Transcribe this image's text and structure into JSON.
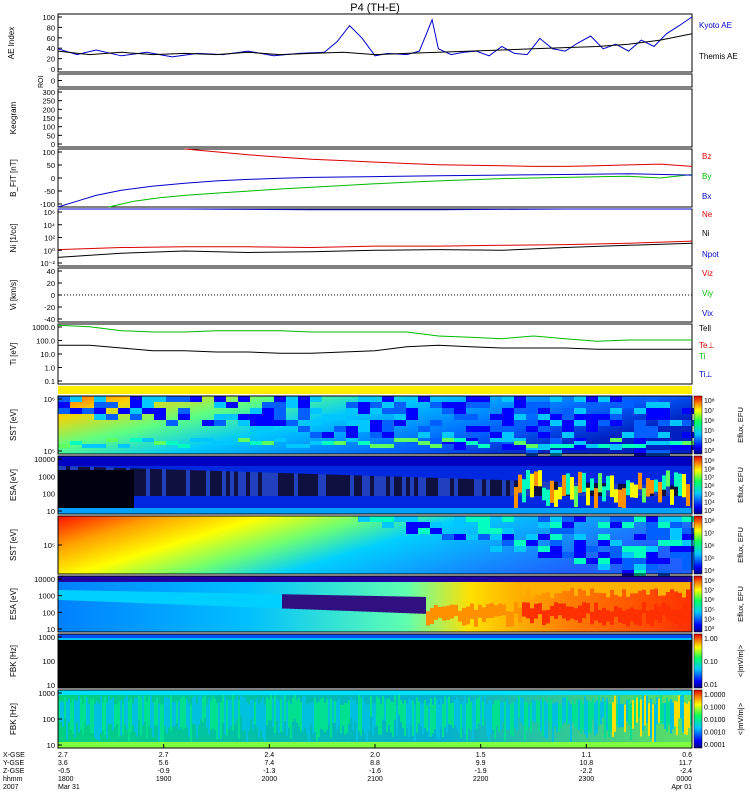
{
  "title": "P4 (TH-E)",
  "colors": {
    "kyoto": "#0000cc",
    "themis": "#000000",
    "bz": "#dd0000",
    "by": "#00bb00",
    "bx": "#0000cc",
    "ne": "#dd0000",
    "ni": "#000000",
    "npot": "#0000cc",
    "tell": "#000000",
    "tperp": "#dd0000",
    "ti": "#00bb00",
    "tiperp": "#0000cc"
  },
  "chart_data": [
    {
      "id": "ae",
      "type": "line",
      "ylabel": "AE Index",
      "yticks": [
        "100",
        "80",
        "60",
        "40",
        "20",
        "0"
      ],
      "ylim": [
        0,
        100
      ],
      "series": [
        {
          "name": "Kyoto AE",
          "color_key": "kyoto",
          "x": [
            0,
            0.03,
            0.06,
            0.1,
            0.14,
            0.18,
            0.22,
            0.26,
            0.3,
            0.34,
            0.38,
            0.42,
            0.44,
            0.46,
            0.48,
            0.5,
            0.52,
            0.55,
            0.57,
            0.59,
            0.6,
            0.62,
            0.64,
            0.66,
            0.68,
            0.7,
            0.72,
            0.74,
            0.76,
            0.78,
            0.8,
            0.82,
            0.84,
            0.86,
            0.88,
            0.9,
            0.92,
            0.94,
            0.96,
            0.98,
            1.0
          ],
          "y": [
            40,
            30,
            38,
            28,
            34,
            26,
            32,
            30,
            36,
            28,
            32,
            34,
            52,
            80,
            58,
            28,
            32,
            30,
            36,
            90,
            40,
            30,
            34,
            36,
            28,
            44,
            32,
            30,
            58,
            40,
            36,
            50,
            62,
            40,
            48,
            36,
            55,
            44,
            66,
            80,
            95
          ]
        },
        {
          "name": "Themis AE",
          "color_key": "themis",
          "x": [
            0,
            0.05,
            0.1,
            0.15,
            0.2,
            0.25,
            0.3,
            0.35,
            0.4,
            0.45,
            0.5,
            0.55,
            0.6,
            0.65,
            0.7,
            0.75,
            0.8,
            0.85,
            0.9,
            0.95,
            1.0
          ],
          "y": [
            36,
            30,
            34,
            30,
            32,
            30,
            34,
            30,
            32,
            34,
            30,
            32,
            34,
            36,
            38,
            40,
            42,
            44,
            48,
            55,
            66
          ]
        }
      ]
    },
    {
      "id": "roi",
      "type": "line",
      "ylabel": "ROI",
      "yticks": [
        "0"
      ],
      "series": []
    },
    {
      "id": "keogram",
      "type": "heatmap",
      "ylabel": "Keogram",
      "yticks": [
        "300",
        "250",
        "200",
        "150",
        "100",
        "50",
        "0"
      ],
      "ylim": [
        0,
        300
      ],
      "values": []
    },
    {
      "id": "bfield",
      "type": "line",
      "ylabel": "B_FIT [nT]",
      "yticks": [
        "100",
        "50",
        "0",
        "-50",
        "-100"
      ],
      "ylim": [
        -100,
        100
      ],
      "series": [
        {
          "name": "Bz",
          "color_key": "bz",
          "x": [
            0.2,
            0.25,
            0.3,
            0.35,
            0.4,
            0.45,
            0.5,
            0.55,
            0.6,
            0.65,
            0.7,
            0.75,
            0.8,
            0.85,
            0.9,
            0.95,
            1.0
          ],
          "y": [
            100,
            90,
            80,
            72,
            65,
            60,
            55,
            50,
            46,
            44,
            42,
            40,
            40,
            42,
            45,
            48,
            40
          ]
        },
        {
          "name": "By",
          "color_key": "by",
          "x": [
            0.08,
            0.12,
            0.16,
            0.2,
            0.25,
            0.3,
            0.35,
            0.4,
            0.45,
            0.5,
            0.55,
            0.6,
            0.65,
            0.7,
            0.75,
            0.8,
            0.85,
            0.9,
            0.95,
            1.0
          ],
          "y": [
            -100,
            -80,
            -68,
            -60,
            -52,
            -45,
            -38,
            -32,
            -26,
            -20,
            -15,
            -10,
            -6,
            -2,
            0,
            2,
            4,
            6,
            0,
            12
          ]
        },
        {
          "name": "Bx",
          "color_key": "bx",
          "x": [
            0,
            0.03,
            0.06,
            0.1,
            0.15,
            0.2,
            0.25,
            0.3,
            0.35,
            0.4,
            0.5,
            0.6,
            0.7,
            0.8,
            0.9,
            1.0
          ],
          "y": [
            -100,
            -80,
            -60,
            -42,
            -28,
            -18,
            -10,
            -5,
            -1,
            2,
            5,
            8,
            10,
            12,
            15,
            10
          ]
        }
      ]
    },
    {
      "id": "density",
      "type": "line",
      "ylabel": "Ni [1/cc]",
      "yticks": [
        "10⁶",
        "10⁴",
        "10²",
        "10⁰",
        "10⁻²"
      ],
      "ylim": [
        -2,
        6
      ],
      "series": [
        {
          "name": "Ne",
          "color_key": "ne",
          "x": [
            0,
            0.1,
            0.2,
            0.3,
            0.4,
            0.5,
            0.6,
            0.7,
            0.8,
            0.9,
            1.0
          ],
          "y": [
            0.3,
            0.6,
            0.7,
            0.7,
            0.6,
            0.8,
            0.8,
            0.9,
            1.0,
            1.2,
            1.5
          ]
        },
        {
          "name": "Ni",
          "color_key": "ni",
          "x": [
            0,
            0.1,
            0.2,
            0.3,
            0.4,
            0.5,
            0.6,
            0.7,
            0.8,
            0.9,
            1.0
          ],
          "y": [
            -0.8,
            -0.2,
            0.1,
            -0.1,
            0.0,
            0.2,
            0.3,
            0.2,
            0.6,
            0.9,
            1.2
          ]
        },
        {
          "name": "Npot",
          "color_key": "npot",
          "x": [
            0,
            0.2,
            0.4,
            0.6,
            0.8,
            1.0
          ],
          "y": [
            6,
            6,
            5.9,
            5.9,
            6,
            6
          ]
        }
      ]
    },
    {
      "id": "velocity",
      "type": "line",
      "ylabel": "Vi [km/s]",
      "yticks": [
        "40",
        "20",
        "0",
        "-20",
        "-40"
      ],
      "ylim": [
        -50,
        50
      ],
      "series": [
        {
          "name": "Viz",
          "color_key": "ne",
          "x": [],
          "y": []
        },
        {
          "name": "Viy",
          "color_key": "by",
          "x": [],
          "y": []
        },
        {
          "name": "Vix",
          "color_key": "bx",
          "x": [],
          "y": []
        }
      ]
    },
    {
      "id": "temperature",
      "type": "line",
      "ylabel": "Ti [eV]",
      "yticks": [
        "1000.0",
        "100.0",
        "10.0",
        "1.0",
        "0.1"
      ],
      "ylim": [
        -1,
        3.5
      ],
      "series": [
        {
          "name": "Tell",
          "color_key": "tell",
          "x": [
            0,
            0.05,
            0.1,
            0.15,
            0.2,
            0.25,
            0.3,
            0.35,
            0.4,
            0.45,
            0.5,
            0.55,
            0.6,
            0.65,
            0.7,
            0.75,
            0.8,
            0.85,
            0.9,
            0.95,
            1.0
          ],
          "y": [
            1.9,
            1.9,
            1.7,
            1.5,
            1.5,
            1.4,
            1.4,
            1.3,
            1.3,
            1.4,
            1.5,
            1.8,
            1.9,
            1.8,
            1.7,
            1.7,
            1.7,
            1.6,
            1.6,
            1.6,
            1.6
          ]
        },
        {
          "name": "Te⊥",
          "color_key": "tperp",
          "x": [],
          "y": []
        },
        {
          "name": "Ti",
          "color_key": "ti",
          "x": [
            0,
            0.05,
            0.1,
            0.15,
            0.2,
            0.25,
            0.3,
            0.35,
            0.4,
            0.45,
            0.5,
            0.55,
            0.6,
            0.65,
            0.7,
            0.75,
            0.8,
            0.85,
            0.9,
            0.95,
            1.0
          ],
          "y": [
            3.4,
            3.3,
            3.0,
            2.9,
            2.9,
            3.0,
            3.0,
            3.0,
            2.9,
            2.9,
            2.9,
            2.9,
            2.6,
            2.5,
            2.4,
            2.6,
            2.4,
            2.2,
            2.3,
            2.3,
            2.3
          ]
        },
        {
          "name": "Ti⊥",
          "color_key": "tiperp",
          "x": [],
          "y": []
        }
      ]
    },
    {
      "id": "sst-e",
      "type": "heatmap",
      "ylabel": "SST [eV]",
      "yticks": [
        "10⁶",
        "10⁵"
      ],
      "colorbar": {
        "label": "Eflux, EFU",
        "ticks": [
          "10⁸",
          "10⁷",
          "10⁶",
          "10⁵",
          "10⁴",
          "10³"
        ]
      }
    },
    {
      "id": "esa-e",
      "type": "heatmap",
      "ylabel": "ESA [eV]",
      "yticks": [
        "10000",
        "1000",
        "100",
        "10"
      ],
      "colorbar": {
        "label": "Eflux, EFU",
        "ticks": [
          "10⁹",
          "10⁸",
          "10⁷",
          "10⁶",
          "10⁵",
          "10⁴",
          "10³"
        ]
      }
    },
    {
      "id": "sst-i",
      "type": "heatmap",
      "ylabel": "SST [eV]",
      "yticks": [
        "10⁵"
      ],
      "colorbar": {
        "label": "Eflux, EFU",
        "ticks": [
          "10⁸",
          "10⁷",
          "10⁶",
          "10⁵",
          "10⁴"
        ]
      }
    },
    {
      "id": "esa-i",
      "type": "heatmap",
      "ylabel": "ESA [eV]",
      "yticks": [
        "10000",
        "1000",
        "100",
        "10"
      ],
      "colorbar": {
        "label": "Eflux, EFU",
        "ticks": [
          "10⁸",
          "10⁷",
          "10⁶",
          "10⁵",
          "10⁴",
          "10³"
        ]
      }
    },
    {
      "id": "fbk-e",
      "type": "heatmap",
      "ylabel": "FBK [Hz]",
      "yticks": [
        "1000",
        "100",
        "10"
      ],
      "colorbar": {
        "label": "<|mV/m|>",
        "ticks": [
          "1.00",
          "0.10",
          "0.01"
        ]
      }
    },
    {
      "id": "fbk-b",
      "type": "heatmap",
      "ylabel": "FBK [Hz]",
      "yticks": [
        "1000",
        "100",
        "10"
      ],
      "colorbar": {
        "label": "<|mV/m|>",
        "ticks": [
          "1.0000",
          "0.1000",
          "0.0100",
          "0.0010",
          "0.0001"
        ]
      }
    }
  ],
  "xaxis": {
    "row_labels": [
      "X-GSE",
      "Y-GSE",
      "Z-GSE",
      "hhmm",
      "2007"
    ],
    "columns": [
      [
        "2.7",
        "3.6",
        "-0.5",
        "1800",
        "Mar 31"
      ],
      [
        "2.7",
        "5.6",
        "-0.9",
        "1900",
        ""
      ],
      [
        "2.4",
        "7.4",
        "-1.3",
        "2000",
        ""
      ],
      [
        "2.0",
        "8.8",
        "-1.6",
        "2100",
        ""
      ],
      [
        "1.5",
        "9.9",
        "-1.9",
        "2200",
        ""
      ],
      [
        "1.1",
        "10.8",
        "-2.2",
        "2300",
        ""
      ],
      [
        "0.6",
        "11.7",
        "-2.4",
        "0000",
        "Apr 01"
      ]
    ]
  }
}
